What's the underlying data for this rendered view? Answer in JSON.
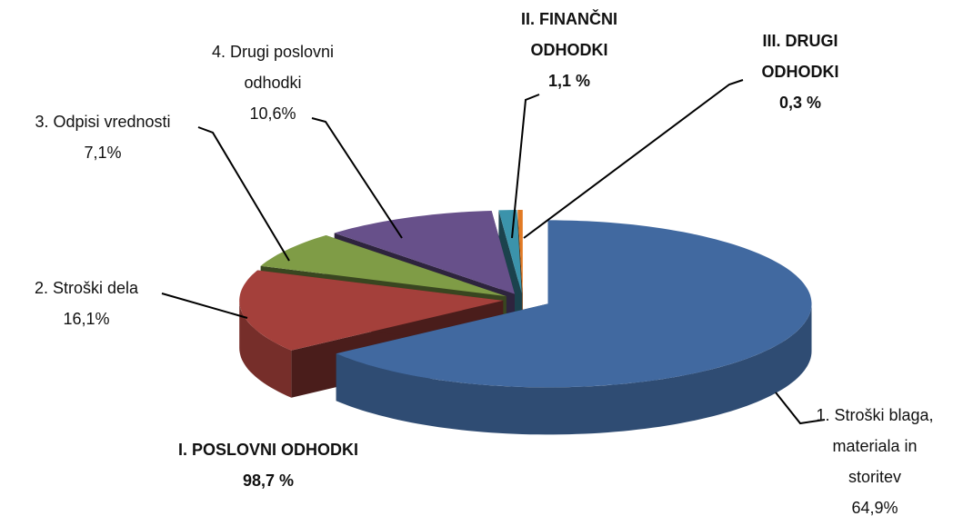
{
  "chart_data": {
    "type": "pie3d",
    "categories": [
      [
        "1. Stroški blaga,",
        "materiala in",
        "storitev"
      ],
      [
        "2. Stroški dela"
      ],
      [
        "3. Odpisi vrednosti"
      ],
      [
        "4. Drugi poslovni",
        "odhodki"
      ],
      [
        "II. FINANČNI",
        "ODHODKI"
      ],
      [
        "III. DRUGI",
        "ODHODKI"
      ]
    ],
    "values": [
      64.9,
      16.1,
      7.1,
      10.6,
      1.1,
      0.3
    ],
    "value_labels": [
      "64,9%",
      "16,1%",
      "7,1%",
      "10,6%",
      "1,1 %",
      "0,3 %"
    ],
    "colors": [
      "#4169a0",
      "#a4403b",
      "#7f9c46",
      "#67508a",
      "#3b93ab",
      "#e27a24"
    ],
    "label_weight": [
      "normal",
      "normal",
      "normal",
      "normal",
      "bold",
      "bold"
    ],
    "annotations": [
      [
        "I. POSLOVNI ODHODKI",
        "98,7 %"
      ]
    ]
  }
}
